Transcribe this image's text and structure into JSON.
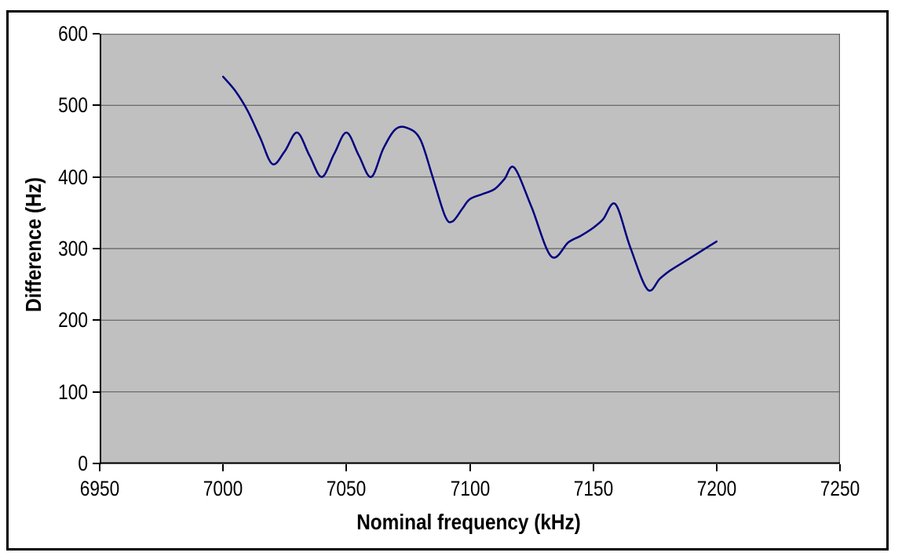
{
  "page": {
    "background": "#ffffff"
  },
  "chart_data": {
    "type": "line",
    "title": "",
    "xlabel": "Nominal frequency (kHz)",
    "ylabel": "Difference (Hz)",
    "xlim": [
      6950,
      7250
    ],
    "ylim": [
      0,
      600
    ],
    "xticks": [
      6950,
      7000,
      7050,
      7100,
      7150,
      7200,
      7250
    ],
    "yticks": [
      0,
      100,
      200,
      300,
      400,
      500,
      600
    ],
    "grid": "horizontal-only",
    "legend": "none",
    "line_style": "smoothed-no-markers",
    "series": [
      {
        "name": "Difference",
        "color": "#000080",
        "points": [
          [
            7000,
            540
          ],
          [
            7005,
            520
          ],
          [
            7010,
            492
          ],
          [
            7015,
            455
          ],
          [
            7020,
            418
          ],
          [
            7025,
            436
          ],
          [
            7030,
            462
          ],
          [
            7035,
            430
          ],
          [
            7040,
            400
          ],
          [
            7045,
            432
          ],
          [
            7050,
            462
          ],
          [
            7055,
            430
          ],
          [
            7060,
            400
          ],
          [
            7065,
            440
          ],
          [
            7070,
            467
          ],
          [
            7075,
            468
          ],
          [
            7080,
            452
          ],
          [
            7085,
            399
          ],
          [
            7090,
            345
          ],
          [
            7093,
            338
          ],
          [
            7097,
            356
          ],
          [
            7100,
            369
          ],
          [
            7105,
            376
          ],
          [
            7110,
            383
          ],
          [
            7114,
            397
          ],
          [
            7118,
            413
          ],
          [
            7125,
            358
          ],
          [
            7133,
            289
          ],
          [
            7140,
            309
          ],
          [
            7145,
            318
          ],
          [
            7150,
            329
          ],
          [
            7154,
            341
          ],
          [
            7159,
            362
          ],
          [
            7165,
            302
          ],
          [
            7172,
            243
          ],
          [
            7177,
            258
          ],
          [
            7181,
            269
          ],
          [
            7188,
            284
          ],
          [
            7194,
            297
          ],
          [
            7200,
            310
          ]
        ]
      }
    ]
  },
  "colors": {
    "plot_background": "#c0c0c0",
    "gridline": "#606060",
    "axis": "#000000",
    "chart_border": "#000000",
    "tick_label": "#000000",
    "series_line": "#000080"
  }
}
